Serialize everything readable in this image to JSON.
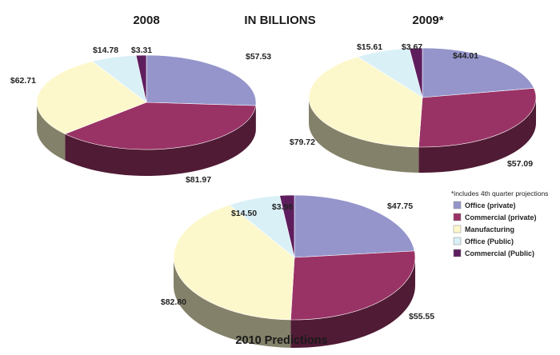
{
  "header": {
    "main": "IN BILLIONS",
    "note": "*includes 4th quarter projections"
  },
  "legend": [
    {
      "label": "Office (private)",
      "color": "#9595cc"
    },
    {
      "label": "Commercial (private)",
      "color": "#993366"
    },
    {
      "label": "Manufacturing",
      "color": "#fdf8cc"
    },
    {
      "label": "Office (Public)",
      "color": "#d9f0f7"
    },
    {
      "label": "Commercial (Public)",
      "color": "#5e1e5e"
    }
  ],
  "chart_data": [
    {
      "type": "pie",
      "title": "2008",
      "categories": [
        "Office (private)",
        "Commercial (private)",
        "Manufacturing",
        "Office (Public)",
        "Commercial (Public)"
      ],
      "values": [
        57.53,
        81.97,
        62.71,
        14.78,
        3.31
      ],
      "labels": [
        "$57.53",
        "$81.97",
        "$62.71",
        "$14.78",
        "$3.31"
      ]
    },
    {
      "type": "pie",
      "title": "2009*",
      "categories": [
        "Office (private)",
        "Commercial (private)",
        "Manufacturing",
        "Office (Public)",
        "Commercial (Public)"
      ],
      "values": [
        44.01,
        57.09,
        79.72,
        15.61,
        3.67
      ],
      "labels": [
        "$44.01",
        "$57.09",
        "$79.72",
        "$15.61",
        "$3.67"
      ]
    },
    {
      "type": "pie",
      "title": "2010 Predictions",
      "categories": [
        "Office (private)",
        "Commercial (private)",
        "Manufacturing",
        "Office (Public)",
        "Commercial (Public)"
      ],
      "values": [
        47.75,
        55.55,
        82.8,
        14.5,
        3.98
      ],
      "labels": [
        "$47.75",
        "$55.55",
        "$82.80",
        "$14.50",
        "$3.98"
      ]
    }
  ]
}
